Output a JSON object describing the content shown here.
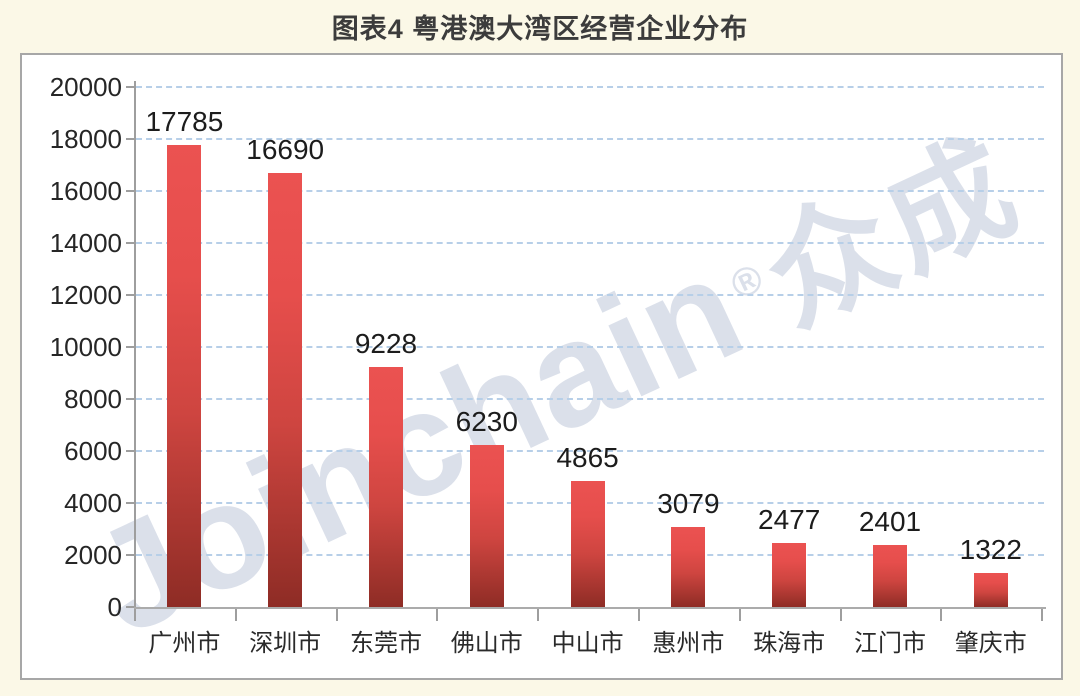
{
  "page": {
    "title": "图表4  粤港澳大湾区经营企业分布",
    "background_color": "#FBF8E7"
  },
  "watermark": {
    "brand": "Joinchain",
    "registered_mark": "®",
    "brand_cjk": "众成",
    "color": "#CDD4E2"
  },
  "chart_data": {
    "type": "bar",
    "title": "图表4  粤港澳大湾区经营企业分布",
    "categories": [
      "广州市",
      "深圳市",
      "东莞市",
      "佛山市",
      "中山市",
      "惠州市",
      "珠海市",
      "江门市",
      "肇庆市"
    ],
    "values": [
      17785,
      16690,
      9228,
      6230,
      4865,
      3079,
      2477,
      2401,
      1322
    ],
    "data_labels": [
      "17785",
      "16690",
      "9228",
      "6230",
      "4865",
      "3079",
      "2477",
      "2401",
      "1322"
    ],
    "xlabel": "",
    "ylabel": "",
    "ylim": [
      0,
      20000
    ],
    "ytick_step": 2000,
    "yticks": [
      0,
      2000,
      4000,
      6000,
      8000,
      10000,
      12000,
      14000,
      16000,
      18000,
      20000
    ],
    "grid": "horizontal dashed",
    "legend": "none",
    "gridline_color": "#B7CFE8",
    "bar_gradient": {
      "top": "#EB5251",
      "upper": "#E64E4C",
      "mid": "#CE4540",
      "bottom": "#8E2C25"
    }
  }
}
